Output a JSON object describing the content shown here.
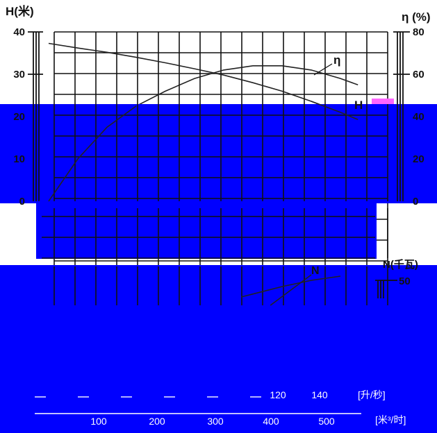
{
  "chart_data": {
    "type": "line",
    "colors": {
      "ink": "#111111",
      "band": "#0000ff",
      "light": "#ffffff",
      "accent": "#ff66ff"
    },
    "left_axis": {
      "label": "H(米)",
      "ticks": [
        0,
        10,
        20,
        30,
        40
      ],
      "range": [
        0,
        40
      ]
    },
    "right_axis": {
      "label": "η (%)",
      "ticks": [
        0,
        20,
        40,
        60,
        80
      ],
      "range": [
        0,
        80
      ]
    },
    "power_axis": {
      "label": "N(千瓦)",
      "ticks": [
        50
      ]
    },
    "x_axis_top": {
      "ticks": [
        "120",
        "140"
      ],
      "unit": "[升/秒]"
    },
    "x_axis_bottom": {
      "ticks": [
        "100",
        "200",
        "300",
        "400",
        "500"
      ],
      "unit": "[米³/时]"
    },
    "series": [
      {
        "name": "H",
        "x": [
          0,
          50,
          100,
          150,
          200,
          250,
          300,
          350,
          400,
          450,
          500,
          530
        ],
        "values": [
          37.3,
          36.2,
          35.2,
          34.0,
          32.7,
          31.3,
          29.8,
          28.0,
          26.0,
          23.6,
          21.0,
          19.3
        ]
      },
      {
        "name": "η",
        "x": [
          0,
          50,
          100,
          150,
          200,
          250,
          300,
          350,
          400,
          450,
          500,
          530
        ],
        "values": [
          0,
          20,
          35,
          45,
          52,
          58,
          62,
          64,
          64,
          62,
          58,
          55
        ]
      },
      {
        "name": "N",
        "x": [
          330,
          400,
          450,
          500
        ],
        "values": [
          42,
          44.5,
          46,
          47
        ]
      }
    ],
    "grid": true
  }
}
